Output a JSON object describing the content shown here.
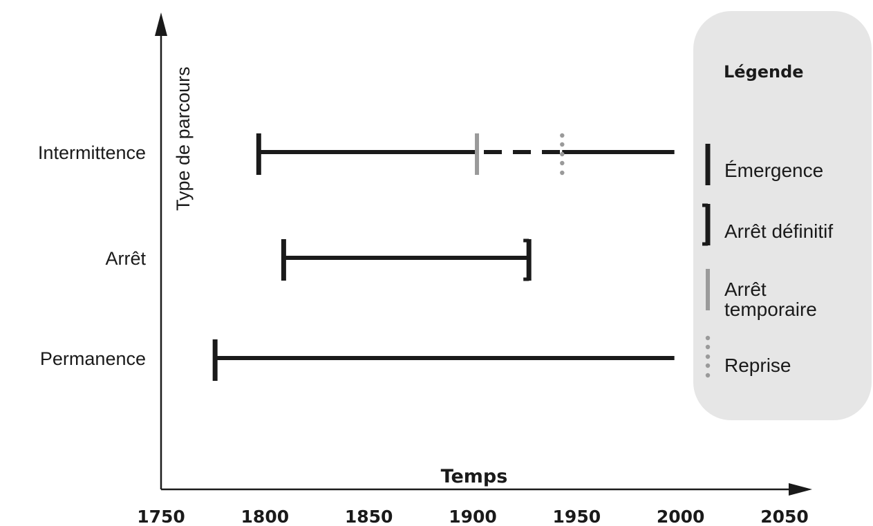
{
  "chart_data": {
    "type": "timeline",
    "xlabel": "Temps",
    "ylabel": "Type de parcours",
    "xlim": [
      1750,
      2050
    ],
    "x_ticks": [
      1750,
      1800,
      1850,
      1900,
      1950,
      2000,
      2050
    ],
    "categories": [
      "Intermittence",
      "Arrêt",
      "Permanence"
    ],
    "tracks": [
      {
        "category": "Intermittence",
        "segments": [
          {
            "start": 1797,
            "end": 1902,
            "style": "solid"
          },
          {
            "start": 1902,
            "end": 1943,
            "style": "dashed"
          },
          {
            "start": 1943,
            "end": 1997,
            "style": "solid"
          }
        ],
        "events": [
          {
            "type": "emergence",
            "x": 1797
          },
          {
            "type": "arret_temporaire",
            "x": 1902
          },
          {
            "type": "reprise",
            "x": 1943
          }
        ]
      },
      {
        "category": "Arrêt",
        "segments": [
          {
            "start": 1809,
            "end": 1927,
            "style": "solid"
          }
        ],
        "events": [
          {
            "type": "emergence",
            "x": 1809
          },
          {
            "type": "arret_definitif",
            "x": 1927
          }
        ]
      },
      {
        "category": "Permanence",
        "segments": [
          {
            "start": 1776,
            "end": 1997,
            "style": "solid"
          }
        ],
        "events": [
          {
            "type": "emergence",
            "x": 1776
          }
        ]
      }
    ],
    "legend": {
      "title": "Légende",
      "position": "right",
      "items": [
        {
          "type": "emergence",
          "lines": [
            "Émergence"
          ]
        },
        {
          "type": "arret_definitif",
          "lines": [
            "Arrêt définitif"
          ]
        },
        {
          "type": "arret_temporaire",
          "lines": [
            "Arrêt",
            "temporaire"
          ]
        },
        {
          "type": "reprise",
          "lines": [
            "Reprise"
          ]
        }
      ]
    },
    "colors": {
      "line": "#1a1a1a",
      "arret_temporaire": "#9a9a9a",
      "reprise": "#9a9a9a",
      "legend_background": "#e6e6e6"
    }
  }
}
